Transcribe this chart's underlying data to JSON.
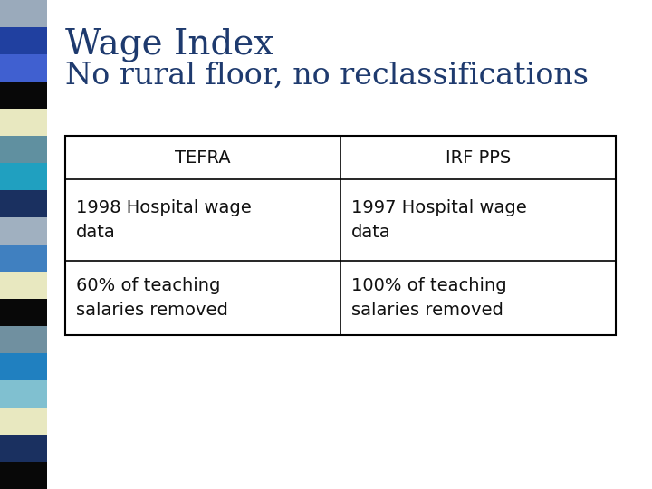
{
  "title_line1": "Wage Index",
  "title_line2": "No rural floor, no reclassifications",
  "title_color": "#1E3A6E",
  "background_color": "#FFFFFF",
  "stripe_colors": [
    "#9AAABB",
    "#2040A0",
    "#4060D0",
    "#080808",
    "#E8E8C0",
    "#6090A0",
    "#20A0C0",
    "#1A3060",
    "#A0B0C0",
    "#4080C0",
    "#E8E8C0",
    "#080808",
    "#7090A0",
    "#2080C0",
    "#80C0D0",
    "#E8E8C0",
    "#1A3060",
    "#080808"
  ],
  "col1_header": "TEFRA",
  "col2_header": "IRF PPS",
  "col1_row1": "1998 Hospital wage\ndata",
  "col2_row1": "1997 Hospital wage\ndata",
  "col1_row2": "60% of teaching\nsalaries removed",
  "col2_row2": "100% of teaching\nsalaries removed",
  "table_text_color": "#111111",
  "header_font_size": 14,
  "body_font_size": 14,
  "title1_font_size": 28,
  "title2_font_size": 24
}
